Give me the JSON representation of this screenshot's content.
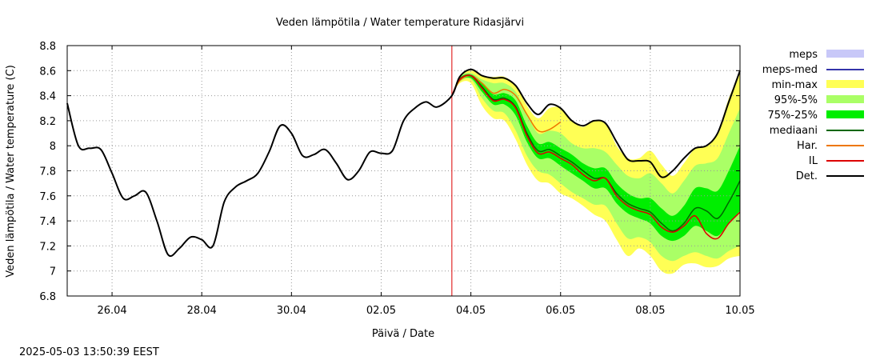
{
  "chart_data": {
    "type": "area",
    "title": "Veden lämpötila / Water temperature Ridasjärvi",
    "xlabel": "Päivä / Date",
    "ylabel": "Veden lämpötila / Water temperature (C)",
    "timestamp": "2025-05-03 13:50:39 EEST",
    "xlim": [
      "2025-04-25T00:00",
      "2025-05-10T00:00"
    ],
    "ylim": [
      6.8,
      8.8
    ],
    "x_ticks": [
      "26.04",
      "28.04",
      "30.04",
      "02.05",
      "04.05",
      "06.05",
      "08.05",
      "10.05"
    ],
    "y_ticks": [
      "6.8",
      "7",
      "7.2",
      "7.4",
      "7.6",
      "7.8",
      "8",
      "8.2",
      "8.4",
      "8.6",
      "8.8"
    ],
    "grid": true,
    "legend_position": "right",
    "forecast_start": "2025-05-03T13:50",
    "legend": [
      {
        "key": "meps",
        "label": "meps",
        "kind": "box",
        "color": "#c8c8f8"
      },
      {
        "key": "meps_med",
        "label": "meps-med",
        "kind": "line",
        "color": "#3333aa"
      },
      {
        "key": "minmax",
        "label": "min-max",
        "kind": "box",
        "color": "#ffff55"
      },
      {
        "key": "p95_5",
        "label": "95%-5%",
        "kind": "box",
        "color": "#aaff66"
      },
      {
        "key": "p75_25",
        "label": "75%-25%",
        "kind": "box",
        "color": "#00ee00"
      },
      {
        "key": "median",
        "label": "mediaani",
        "kind": "line",
        "color": "#006600"
      },
      {
        "key": "har",
        "label": "Har.",
        "kind": "line",
        "color": "#ee7700"
      },
      {
        "key": "il",
        "label": "IL",
        "kind": "line",
        "color": "#dd0000"
      },
      {
        "key": "det",
        "label": "Det.",
        "kind": "line",
        "color": "#000000"
      }
    ],
    "series": [
      {
        "key": "det",
        "color": "#000000",
        "x": [
          "2025-04-25T00:00",
          "2025-04-25T06:00",
          "2025-04-25T12:00",
          "2025-04-25T18:00",
          "2025-04-26T00:00",
          "2025-04-26T06:00",
          "2025-04-26T12:00",
          "2025-04-26T18:00",
          "2025-04-27T00:00",
          "2025-04-27T06:00",
          "2025-04-27T12:00",
          "2025-04-27T18:00",
          "2025-04-28T00:00",
          "2025-04-28T06:00",
          "2025-04-28T12:00",
          "2025-04-28T18:00",
          "2025-04-29T00:00",
          "2025-04-29T06:00",
          "2025-04-29T12:00",
          "2025-04-29T18:00",
          "2025-04-30T00:00",
          "2025-04-30T06:00",
          "2025-04-30T12:00",
          "2025-04-30T18:00",
          "2025-05-01T00:00",
          "2025-05-01T06:00",
          "2025-05-01T12:00",
          "2025-05-01T18:00",
          "2025-05-02T00:00",
          "2025-05-02T06:00",
          "2025-05-02T12:00",
          "2025-05-02T18:00",
          "2025-05-03T00:00",
          "2025-05-03T06:00",
          "2025-05-03T13:50",
          "2025-05-03T18:00",
          "2025-05-04T00:00",
          "2025-05-04T06:00",
          "2025-05-04T12:00",
          "2025-05-04T18:00",
          "2025-05-05T00:00",
          "2025-05-05T06:00",
          "2025-05-05T12:00",
          "2025-05-05T18:00",
          "2025-05-06T00:00",
          "2025-05-06T06:00",
          "2025-05-06T12:00",
          "2025-05-06T18:00",
          "2025-05-07T00:00",
          "2025-05-07T06:00",
          "2025-05-07T12:00",
          "2025-05-07T18:00",
          "2025-05-08T00:00",
          "2025-05-08T06:00",
          "2025-05-08T12:00",
          "2025-05-08T18:00",
          "2025-05-09T00:00",
          "2025-05-09T06:00",
          "2025-05-09T12:00",
          "2025-05-09T18:00",
          "2025-05-10T00:00"
        ],
        "y": [
          8.34,
          8.0,
          7.98,
          7.97,
          7.78,
          7.58,
          7.6,
          7.63,
          7.4,
          7.13,
          7.18,
          7.27,
          7.25,
          7.2,
          7.55,
          7.67,
          7.72,
          7.78,
          7.95,
          8.16,
          8.1,
          7.92,
          7.93,
          7.97,
          7.86,
          7.73,
          7.8,
          7.95,
          7.94,
          7.96,
          8.2,
          8.3,
          8.35,
          8.31,
          8.4,
          8.55,
          8.61,
          8.56,
          8.54,
          8.54,
          8.48,
          8.34,
          8.25,
          8.33,
          8.3,
          8.2,
          8.16,
          8.2,
          8.18,
          8.03,
          7.89,
          7.88,
          7.87,
          7.75,
          7.8,
          7.9,
          7.98,
          8.0,
          8.1,
          8.35,
          8.6
        ]
      },
      {
        "key": "har",
        "color": "#ee7700",
        "x": [
          "2025-05-03T13:50",
          "2025-05-03T18:00",
          "2025-05-04T00:00",
          "2025-05-04T06:00",
          "2025-05-04T12:00",
          "2025-05-04T18:00",
          "2025-05-05T00:00",
          "2025-05-05T06:00",
          "2025-05-05T12:00",
          "2025-05-05T18:00",
          "2025-05-06T00:00"
        ],
        "y": [
          8.4,
          8.52,
          8.56,
          8.5,
          8.42,
          8.45,
          8.4,
          8.25,
          8.12,
          8.13,
          8.19
        ]
      },
      {
        "key": "median",
        "color": "#006600",
        "x": [
          "2025-05-03T13:50",
          "2025-05-03T18:00",
          "2025-05-04T00:00",
          "2025-05-04T06:00",
          "2025-05-04T12:00",
          "2025-05-04T18:00",
          "2025-05-05T00:00",
          "2025-05-05T06:00",
          "2025-05-05T12:00",
          "2025-05-05T18:00",
          "2025-05-06T00:00",
          "2025-05-06T06:00",
          "2025-05-06T12:00",
          "2025-05-06T18:00",
          "2025-05-07T00:00",
          "2025-05-07T06:00",
          "2025-05-07T12:00",
          "2025-05-07T18:00",
          "2025-05-08T00:00",
          "2025-05-08T06:00",
          "2025-05-08T12:00",
          "2025-05-08T18:00",
          "2025-05-09T00:00",
          "2025-05-09T06:00",
          "2025-05-09T12:00",
          "2025-05-09T18:00",
          "2025-05-10T00:00"
        ],
        "y": [
          8.4,
          8.53,
          8.56,
          8.47,
          8.37,
          8.38,
          8.31,
          8.1,
          7.96,
          7.97,
          7.92,
          7.87,
          7.8,
          7.74,
          7.74,
          7.62,
          7.54,
          7.5,
          7.47,
          7.38,
          7.32,
          7.38,
          7.5,
          7.48,
          7.42,
          7.55,
          7.72
        ]
      },
      {
        "key": "il",
        "color": "#dd0000",
        "x": [
          "2025-05-03T13:50",
          "2025-05-03T18:00",
          "2025-05-04T00:00",
          "2025-05-04T06:00",
          "2025-05-04T12:00",
          "2025-05-04T18:00",
          "2025-05-05T00:00",
          "2025-05-05T06:00",
          "2025-05-05T12:00",
          "2025-05-05T18:00",
          "2025-05-06T00:00",
          "2025-05-06T06:00",
          "2025-05-06T12:00",
          "2025-05-06T18:00",
          "2025-05-07T00:00",
          "2025-05-07T06:00",
          "2025-05-07T12:00",
          "2025-05-07T18:00",
          "2025-05-08T00:00",
          "2025-05-08T06:00",
          "2025-05-08T12:00",
          "2025-05-08T18:00",
          "2025-05-09T00:00",
          "2025-05-09T06:00",
          "2025-05-09T12:00",
          "2025-05-09T18:00",
          "2025-05-10T00:00"
        ],
        "y": [
          8.4,
          8.53,
          8.56,
          8.46,
          8.36,
          8.37,
          8.3,
          8.08,
          7.94,
          7.95,
          7.9,
          7.85,
          7.77,
          7.72,
          7.74,
          7.6,
          7.52,
          7.48,
          7.45,
          7.35,
          7.31,
          7.36,
          7.44,
          7.3,
          7.26,
          7.38,
          7.47
        ]
      }
    ],
    "bands": [
      {
        "key": "minmax",
        "color": "#ffff55",
        "x": [
          "2025-05-03T13:50",
          "2025-05-03T18:00",
          "2025-05-04T00:00",
          "2025-05-04T06:00",
          "2025-05-04T12:00",
          "2025-05-04T18:00",
          "2025-05-05T00:00",
          "2025-05-05T06:00",
          "2025-05-05T12:00",
          "2025-05-05T18:00",
          "2025-05-06T00:00",
          "2025-05-06T06:00",
          "2025-05-06T12:00",
          "2025-05-06T18:00",
          "2025-05-07T00:00",
          "2025-05-07T06:00",
          "2025-05-07T12:00",
          "2025-05-07T18:00",
          "2025-05-08T00:00",
          "2025-05-08T06:00",
          "2025-05-08T12:00",
          "2025-05-08T18:00",
          "2025-05-09T00:00",
          "2025-05-09T06:00",
          "2025-05-09T12:00",
          "2025-05-09T18:00",
          "2025-05-10T00:00"
        ],
        "low": [
          8.4,
          8.5,
          8.5,
          8.32,
          8.22,
          8.2,
          8.05,
          7.85,
          7.72,
          7.7,
          7.62,
          7.58,
          7.52,
          7.45,
          7.4,
          7.25,
          7.12,
          7.18,
          7.12,
          7.0,
          6.98,
          7.05,
          7.06,
          7.03,
          7.04,
          7.1,
          7.12
        ],
        "high": [
          8.4,
          8.56,
          8.6,
          8.56,
          8.55,
          8.55,
          8.48,
          8.32,
          8.22,
          8.3,
          8.3,
          8.2,
          8.15,
          8.2,
          8.18,
          8.0,
          7.9,
          7.9,
          7.96,
          7.85,
          7.76,
          7.86,
          7.98,
          8.0,
          8.1,
          8.38,
          8.58
        ]
      },
      {
        "key": "p95_5",
        "color": "#aaff66",
        "x": [
          "2025-05-03T13:50",
          "2025-05-03T18:00",
          "2025-05-04T00:00",
          "2025-05-04T06:00",
          "2025-05-04T12:00",
          "2025-05-04T18:00",
          "2025-05-05T00:00",
          "2025-05-05T06:00",
          "2025-05-05T12:00",
          "2025-05-05T18:00",
          "2025-05-06T00:00",
          "2025-05-06T06:00",
          "2025-05-06T12:00",
          "2025-05-06T18:00",
          "2025-05-07T00:00",
          "2025-05-07T06:00",
          "2025-05-07T12:00",
          "2025-05-07T18:00",
          "2025-05-08T00:00",
          "2025-05-08T06:00",
          "2025-05-08T12:00",
          "2025-05-08T18:00",
          "2025-05-09T00:00",
          "2025-05-09T06:00",
          "2025-05-09T12:00",
          "2025-05-09T18:00",
          "2025-05-10T00:00"
        ],
        "low": [
          8.4,
          8.51,
          8.53,
          8.38,
          8.28,
          8.26,
          8.12,
          7.92,
          7.8,
          7.77,
          7.7,
          7.63,
          7.58,
          7.53,
          7.52,
          7.38,
          7.26,
          7.27,
          7.23,
          7.12,
          7.08,
          7.12,
          7.15,
          7.12,
          7.1,
          7.16,
          7.2
        ],
        "high": [
          8.4,
          8.55,
          8.58,
          8.53,
          8.5,
          8.5,
          8.43,
          8.25,
          8.1,
          8.12,
          8.1,
          8.02,
          7.98,
          7.98,
          7.95,
          7.85,
          7.76,
          7.74,
          7.78,
          7.7,
          7.62,
          7.72,
          7.84,
          7.86,
          7.9,
          8.1,
          8.3
        ]
      },
      {
        "key": "p75_25",
        "color": "#00ee00",
        "x": [
          "2025-05-03T13:50",
          "2025-05-03T18:00",
          "2025-05-04T00:00",
          "2025-05-04T06:00",
          "2025-05-04T12:00",
          "2025-05-04T18:00",
          "2025-05-05T00:00",
          "2025-05-05T06:00",
          "2025-05-05T12:00",
          "2025-05-05T18:00",
          "2025-05-06T00:00",
          "2025-05-06T06:00",
          "2025-05-06T12:00",
          "2025-05-06T18:00",
          "2025-05-07T00:00",
          "2025-05-07T06:00",
          "2025-05-07T12:00",
          "2025-05-07T18:00",
          "2025-05-08T00:00",
          "2025-05-08T06:00",
          "2025-05-08T12:00",
          "2025-05-08T18:00",
          "2025-05-09T00:00",
          "2025-05-09T06:00",
          "2025-05-09T12:00",
          "2025-05-09T18:00",
          "2025-05-10T00:00"
        ],
        "low": [
          8.4,
          8.52,
          8.54,
          8.43,
          8.33,
          8.33,
          8.24,
          8.03,
          7.9,
          7.9,
          7.84,
          7.78,
          7.72,
          7.66,
          7.66,
          7.54,
          7.46,
          7.42,
          7.38,
          7.28,
          7.24,
          7.28,
          7.36,
          7.32,
          7.28,
          7.38,
          7.48
        ],
        "high": [
          8.4,
          8.54,
          8.57,
          8.5,
          8.41,
          8.42,
          8.36,
          8.16,
          8.02,
          8.03,
          7.98,
          7.93,
          7.86,
          7.82,
          7.82,
          7.7,
          7.62,
          7.58,
          7.58,
          7.5,
          7.44,
          7.52,
          7.66,
          7.66,
          7.64,
          7.8,
          8.0
        ]
      }
    ]
  }
}
